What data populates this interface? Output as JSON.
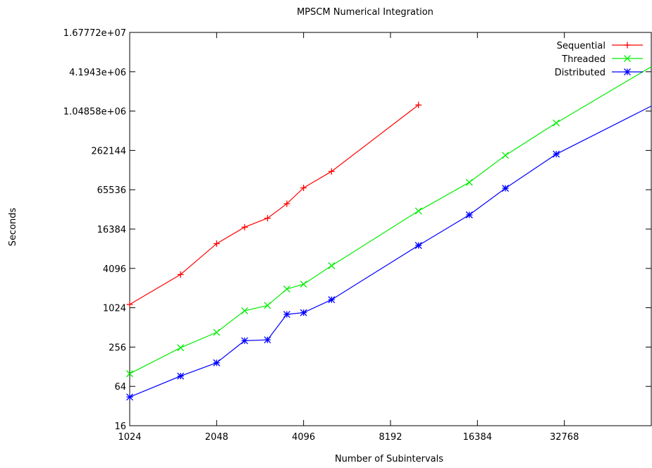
{
  "chart_data": {
    "type": "line",
    "title": "MPSCM Numerical Integration",
    "xlabel": "Number of Subintervals",
    "ylabel": "Seconds",
    "x_scale": "log2",
    "y_scale": "log2",
    "xlim": [
      1024,
      65536
    ],
    "ylim": [
      16,
      16777216
    ],
    "x_ticks": [
      1024,
      2048,
      4096,
      8192,
      16384,
      32768
    ],
    "x_tick_labels": [
      "1024",
      "2048",
      "4096",
      "8192",
      "16384",
      "32768"
    ],
    "y_ticks": [
      16,
      64,
      256,
      1024,
      4096,
      16384,
      65536,
      262144,
      1048576,
      4194304,
      16777216
    ],
    "y_tick_labels": [
      "16",
      "64",
      "256",
      "1024",
      "4096",
      "16384",
      "65536",
      "262144",
      "1.04858e+06",
      "4.1943e+06",
      "1.67772e+07"
    ],
    "grid": false,
    "legend_position": "top-right",
    "series": [
      {
        "name": "Sequential",
        "color": "#ff0000",
        "marker": "plus",
        "points": [
          [
            1024,
            1150
          ],
          [
            1536,
            3300
          ],
          [
            2048,
            9800
          ],
          [
            2560,
            17500
          ],
          [
            3072,
            24000
          ],
          [
            3584,
            40000
          ],
          [
            4096,
            70000
          ],
          [
            5120,
            125000
          ],
          [
            10240,
            1300000
          ]
        ]
      },
      {
        "name": "Threaded",
        "color": "#00ee00",
        "marker": "cross",
        "points": [
          [
            1024,
            100
          ],
          [
            1536,
            250
          ],
          [
            2048,
            430
          ],
          [
            2560,
            920
          ],
          [
            3072,
            1110
          ],
          [
            3584,
            1980
          ],
          [
            4096,
            2350
          ],
          [
            5120,
            4500
          ],
          [
            10240,
            31000
          ],
          [
            15360,
            85000
          ],
          [
            20480,
            220000
          ],
          [
            30720,
            690000
          ],
          [
            65536,
            5000000
          ]
        ]
      },
      {
        "name": "Distributed",
        "color": "#0000ff",
        "marker": "star",
        "points": [
          [
            1024,
            44
          ],
          [
            1536,
            92
          ],
          [
            2048,
            147
          ],
          [
            2560,
            320
          ],
          [
            3072,
            330
          ],
          [
            3584,
            810
          ],
          [
            4096,
            860
          ],
          [
            5120,
            1360
          ],
          [
            10240,
            9200
          ],
          [
            15360,
            27000
          ],
          [
            20480,
            69000
          ],
          [
            30720,
            230000
          ],
          [
            65536,
            1250000
          ]
        ]
      }
    ]
  }
}
